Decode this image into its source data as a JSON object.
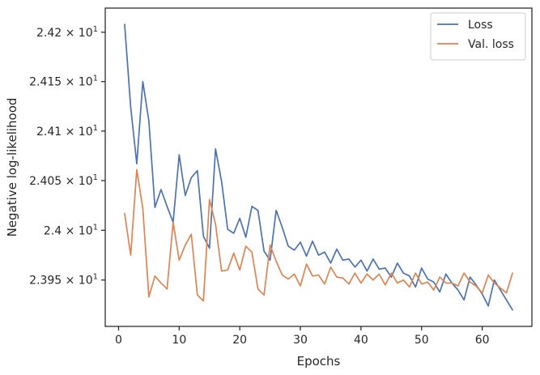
{
  "chart_data": {
    "type": "line",
    "title": "",
    "xlabel": "Epochs",
    "ylabel": "Negative log-likelihood",
    "xlim": [
      -2.2,
      68.2
    ],
    "ylim": [
      23.9035,
      24.2245
    ],
    "yscale": "log",
    "grid": false,
    "legend_position": "top-right",
    "x_ticks": [
      0,
      10,
      20,
      30,
      40,
      50,
      60
    ],
    "x_tick_labels": [
      "0",
      "10",
      "20",
      "30",
      "40",
      "50",
      "60"
    ],
    "y_ticks": [
      23.95,
      24.0,
      24.05,
      24.1,
      24.15,
      24.2
    ],
    "y_tick_labels": [
      {
        "mantissa": "2.395",
        "exp": "1"
      },
      {
        "mantissa": "2.4",
        "exp": "1"
      },
      {
        "mantissa": "2.405",
        "exp": "1"
      },
      {
        "mantissa": "2.41",
        "exp": "1"
      },
      {
        "mantissa": "2.415",
        "exp": "1"
      },
      {
        "mantissa": "2.42",
        "exp": "1"
      }
    ],
    "x": [
      1,
      2,
      3,
      4,
      5,
      6,
      7,
      8,
      9,
      10,
      11,
      12,
      13,
      14,
      15,
      16,
      17,
      18,
      19,
      20,
      21,
      22,
      23,
      24,
      25,
      26,
      27,
      28,
      29,
      30,
      31,
      32,
      33,
      34,
      35,
      36,
      37,
      38,
      39,
      40,
      41,
      42,
      43,
      44,
      45,
      46,
      47,
      48,
      49,
      50,
      51,
      52,
      53,
      54,
      55,
      56,
      57,
      58,
      59,
      60,
      61,
      62,
      63,
      64,
      65
    ],
    "series": [
      {
        "name": "Loss",
        "color": "#4c72b0",
        "values": [
          24.208,
          24.124,
          24.067,
          24.15,
          24.11,
          24.023,
          24.041,
          24.024,
          24.008,
          24.076,
          24.035,
          24.053,
          24.06,
          23.994,
          23.982,
          24.082,
          24.049,
          24.001,
          23.997,
          24.012,
          23.993,
          24.024,
          24.02,
          23.979,
          23.97,
          24.02,
          24.003,
          23.984,
          23.98,
          23.988,
          23.974,
          23.989,
          23.975,
          23.978,
          23.967,
          23.981,
          23.97,
          23.971,
          23.963,
          23.97,
          23.959,
          23.971,
          23.961,
          23.962,
          23.953,
          23.967,
          23.957,
          23.954,
          23.943,
          23.962,
          23.951,
          23.948,
          23.938,
          23.956,
          23.947,
          23.94,
          23.93,
          23.953,
          23.945,
          23.936,
          23.924,
          23.95,
          23.94,
          23.93,
          23.92
        ]
      },
      {
        "name": "Val. loss",
        "color": "#dd8452",
        "values": [
          24.017,
          23.975,
          24.061,
          24.022,
          23.933,
          23.954,
          23.947,
          23.941,
          24.008,
          23.97,
          23.985,
          23.996,
          23.935,
          23.929,
          24.031,
          24.006,
          23.959,
          23.96,
          23.977,
          23.96,
          23.984,
          23.978,
          23.941,
          23.935,
          23.985,
          23.969,
          23.955,
          23.951,
          23.956,
          23.944,
          23.966,
          23.954,
          23.955,
          23.946,
          23.963,
          23.953,
          23.952,
          23.946,
          23.957,
          23.947,
          23.956,
          23.95,
          23.956,
          23.945,
          23.957,
          23.947,
          23.95,
          23.943,
          23.957,
          23.946,
          23.948,
          23.94,
          23.953,
          23.947,
          23.947,
          23.944,
          23.957,
          23.948,
          23.944,
          23.937,
          23.955,
          23.947,
          23.942,
          23.937,
          23.957
        ]
      }
    ]
  }
}
